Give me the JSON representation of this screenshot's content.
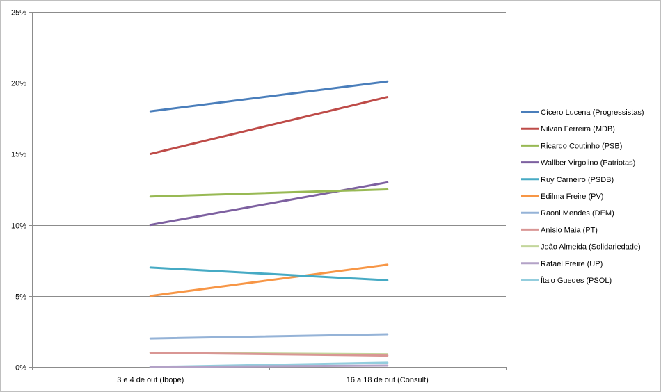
{
  "chart_data": {
    "type": "line",
    "title": "",
    "xlabel": "",
    "ylabel": "",
    "x": [
      "3 e 4 de out (Ibope)",
      "16 a 18 de out (Consult)"
    ],
    "ylim": [
      0,
      25
    ],
    "y_ticks": [
      "0%",
      "5%",
      "10%",
      "15%",
      "20%",
      "25%"
    ],
    "grid": "horizontal",
    "legend_position": "right",
    "series": [
      {
        "name": "Cícero Lucena (Progressistas)",
        "color": "#4a7ebb",
        "values": [
          18,
          20.1
        ]
      },
      {
        "name": "Nilvan Ferreira (MDB)",
        "color": "#be4b48",
        "values": [
          15,
          19
        ]
      },
      {
        "name": "Ricardo Coutinho (PSB)",
        "color": "#98b954",
        "values": [
          12,
          12.5
        ]
      },
      {
        "name": "Wallber Virgolino (Patriotas)",
        "color": "#7d60a0",
        "values": [
          10,
          13
        ]
      },
      {
        "name": "Ruy Carneiro (PSDB)",
        "color": "#46aac4",
        "values": [
          7,
          6.1
        ]
      },
      {
        "name": "Edilma Freire (PV)",
        "color": "#f79646",
        "values": [
          5,
          7.2
        ]
      },
      {
        "name": "Raoni Mendes (DEM)",
        "color": "#95b3d7",
        "values": [
          2,
          2.3
        ]
      },
      {
        "name": "Anísio Maia (PT)",
        "color": "#d99694",
        "values": [
          1,
          0.8
        ]
      },
      {
        "name": "João Almeida (Solidariedade)",
        "color": "#c3d69b",
        "values": [
          1,
          0.9
        ]
      },
      {
        "name": "Rafael Freire (UP)",
        "color": "#b3a2c7",
        "values": [
          0,
          0.1
        ]
      },
      {
        "name": "Ítalo Guedes (PSOL)",
        "color": "#93cddd",
        "values": [
          0,
          0.3
        ]
      }
    ]
  }
}
